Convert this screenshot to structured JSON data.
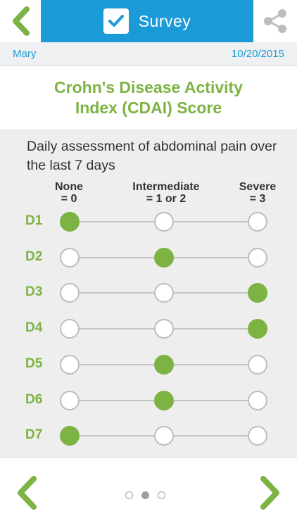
{
  "header": {
    "title": "Survey"
  },
  "info": {
    "patient": "Mary",
    "date": "10/20/2015"
  },
  "heading": {
    "line1": "Crohn's Disease Activity",
    "line2": "Index (CDAI) Score"
  },
  "question": {
    "text": "Daily assessment of abdominal pain over the last 7 days"
  },
  "columns": [
    {
      "line1": "None",
      "line2": "= 0"
    },
    {
      "line1": "Intermediate",
      "line2": "= 1 or 2"
    },
    {
      "line1": "Severe",
      "line2": "= 3"
    }
  ],
  "rows": [
    {
      "label": "D1",
      "selected": 0
    },
    {
      "label": "D2",
      "selected": 1
    },
    {
      "label": "D3",
      "selected": 2
    },
    {
      "label": "D4",
      "selected": 2
    },
    {
      "label": "D5",
      "selected": 1
    },
    {
      "label": "D6",
      "selected": 1
    },
    {
      "label": "D7",
      "selected": 0
    }
  ],
  "pager": {
    "count": 3,
    "current": 1
  },
  "colors": {
    "accent_blue": "#1a9ad6",
    "accent_green": "#7cb342",
    "panel_gray": "#eeeeee"
  },
  "icons": {
    "back": "chevron-left-icon",
    "check": "checkbox-checked-icon",
    "share": "share-icon",
    "prev": "chevron-left-icon",
    "next": "chevron-right-icon"
  }
}
